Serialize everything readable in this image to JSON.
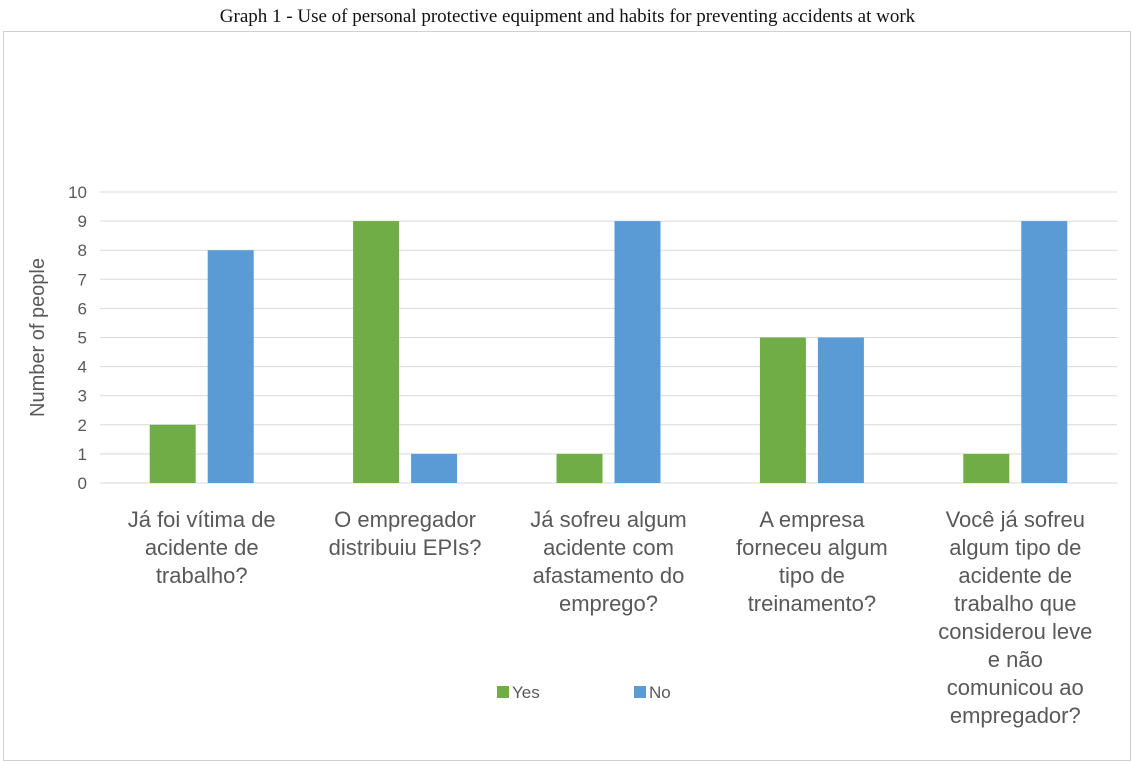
{
  "chart_data": {
    "type": "bar",
    "title": "Graph 1 - Use of personal protective equipment and habits for preventing accidents at work",
    "xlabel": "",
    "ylabel": "Number of people",
    "ylim": [
      0,
      10
    ],
    "yticks": [
      0,
      1,
      2,
      3,
      4,
      5,
      6,
      7,
      8,
      9,
      10
    ],
    "grid": true,
    "legend_position": "bottom",
    "categories": [
      [
        "Já foi vítima de",
        "acidente de",
        "trabalho?"
      ],
      [
        "O empregador",
        "distribuiu EPIs?"
      ],
      [
        "Já sofreu algum",
        "acidente com",
        "afastamento do",
        "emprego?"
      ],
      [
        "A empresa",
        "forneceu algum",
        "tipo de",
        "treinamento?"
      ],
      [
        "Você já sofreu",
        "algum tipo de",
        "acidente de",
        "trabalho que",
        "considerou leve",
        "e não",
        "comunicou ao",
        "empregador?"
      ]
    ],
    "series": [
      {
        "name": "Yes",
        "color": "#70ad47",
        "values": [
          2,
          9,
          1,
          5,
          1
        ]
      },
      {
        "name": "No",
        "color": "#5b9bd5",
        "values": [
          8,
          1,
          9,
          5,
          9
        ]
      }
    ]
  }
}
